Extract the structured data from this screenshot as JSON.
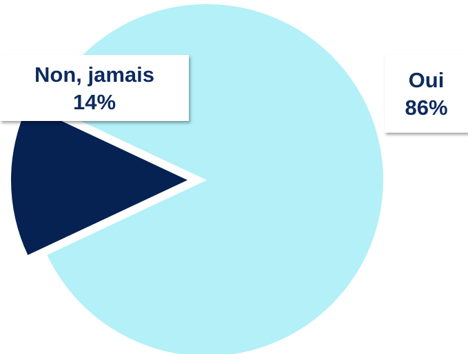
{
  "chart_data": {
    "type": "pie",
    "slices": [
      {
        "label": "Oui",
        "value": 86,
        "value_label": "86%",
        "color": "#b3f0f7"
      },
      {
        "label": "Non, jamais",
        "value": 14,
        "value_label": "14%",
        "color": "#062252",
        "exploded": true
      }
    ],
    "legend": "none",
    "title": ""
  }
}
